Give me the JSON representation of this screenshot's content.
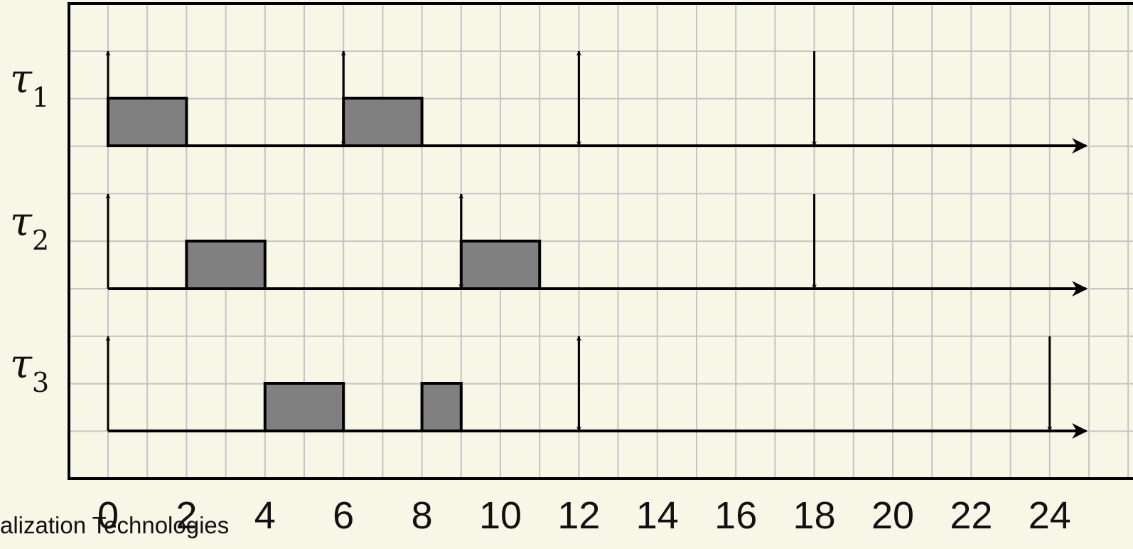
{
  "footer": {
    "text": "alization Technologies"
  },
  "chart_data": {
    "type": "gantt",
    "x_ticks": [
      0,
      2,
      4,
      6,
      8,
      10,
      12,
      14,
      16,
      18,
      20,
      22,
      24
    ],
    "x_range": [
      -1,
      25
    ],
    "tasks": [
      {
        "label": "τ",
        "sub": "1",
        "executions": [
          [
            0,
            2
          ],
          [
            6,
            8
          ]
        ],
        "releases": [
          0,
          6,
          12
        ],
        "deadlines": [
          6,
          12,
          18
        ]
      },
      {
        "label": "τ",
        "sub": "2",
        "executions": [
          [
            2,
            4
          ],
          [
            9,
            11
          ]
        ],
        "releases": [
          0,
          9
        ],
        "deadlines": [
          9,
          18
        ]
      },
      {
        "label": "τ",
        "sub": "3",
        "executions": [
          [
            4,
            6
          ],
          [
            8,
            9
          ]
        ],
        "releases": [
          0,
          12
        ],
        "deadlines": [
          12,
          24
        ]
      }
    ],
    "colors": {
      "execution": "#808080",
      "grid": "#c4c4c4",
      "background": "#f7f7e8",
      "line": "#000000"
    }
  }
}
